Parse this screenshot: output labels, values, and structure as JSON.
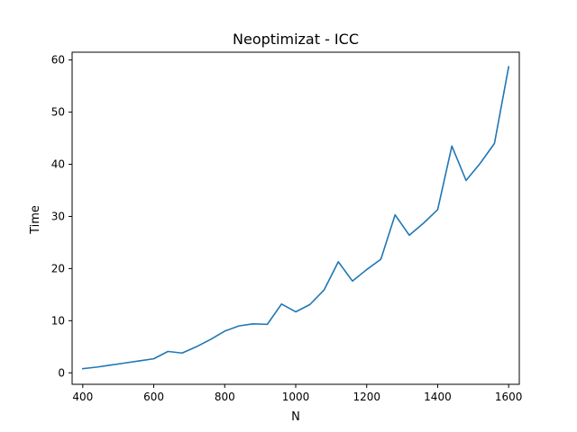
{
  "chart_data": {
    "type": "line",
    "title": "Neoptimizat - ICC",
    "xlabel": "N",
    "ylabel": "Time",
    "xlim": [
      370,
      1630
    ],
    "ylim": [
      -2.2,
      61.5
    ],
    "xticks": [
      400,
      600,
      800,
      1000,
      1200,
      1400,
      1600
    ],
    "yticks": [
      0,
      10,
      20,
      30,
      40,
      50,
      60
    ],
    "grid": false,
    "line_color": "#1f77b4",
    "series": [
      {
        "x": [
          400,
          440,
          480,
          520,
          560,
          600,
          640,
          680,
          720,
          760,
          800,
          840,
          880,
          920,
          960,
          1000,
          1040,
          1080,
          1120,
          1160,
          1200,
          1240,
          1280,
          1320,
          1360,
          1400,
          1440,
          1480,
          1520,
          1560,
          1600
        ],
        "values": [
          0.8,
          1.1,
          1.5,
          1.9,
          2.3,
          2.7,
          4.1,
          3.8,
          5.0,
          6.4,
          8.0,
          9.0,
          9.4,
          9.3,
          13.2,
          11.7,
          13.1,
          15.9,
          21.3,
          17.6,
          19.8,
          21.8,
          30.3,
          26.4,
          28.7,
          31.3,
          43.5,
          36.9,
          40.2,
          44.0,
          58.7
        ]
      }
    ]
  }
}
